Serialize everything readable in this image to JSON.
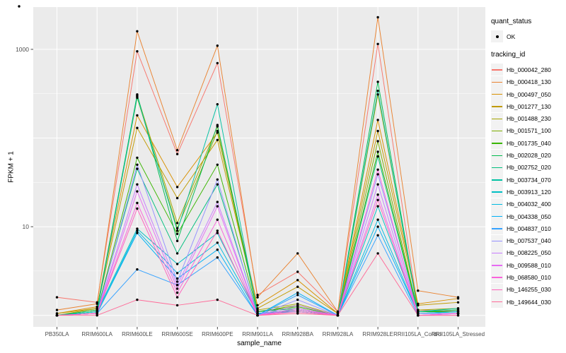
{
  "figure": {
    "background": "#FFFFFF",
    "panel_background": "#EBEBEB",
    "grid_color": "#FFFFFF",
    "tick_color": "#333333",
    "tick_label_color": "#4D4D4D"
  },
  "chart_data": {
    "type": "line",
    "title": "",
    "xlabel": "sample_name",
    "ylabel": "FPKM + 1",
    "y_scale": "log10",
    "ylim": [
      0.74,
      3200
    ],
    "grid": true,
    "legend_position": "right",
    "y_tick_labels": [
      {
        "value": 1000,
        "label": "1000"
      },
      {
        "value": 10,
        "label": "10"
      }
    ],
    "y_gridlines_major": [
      1,
      10,
      100,
      1000
    ],
    "y_gridlines_minor": [
      3.162,
      31.62,
      316.2
    ],
    "categories": [
      "PB350LA",
      "RRIM600LA",
      "RRIM600LE",
      "RRIM600SE",
      "RRIM600PE",
      "RRIM901LA",
      "RRIM928BA",
      "RRIM928LA",
      "RRIM928LE",
      "RRII105LA_Control",
      "RRII105LA_Stressed"
    ],
    "point_color": "#000000",
    "legend": {
      "quant_status": {
        "title": "quant_status",
        "items": [
          {
            "label": "OK",
            "marker": "point",
            "color": "#000000"
          }
        ]
      },
      "tracking_id": {
        "title": "tracking_id"
      }
    },
    "series": [
      {
        "name": "Hb_000042_280",
        "color": "#F8766D",
        "values": [
          1.6,
          1.4,
          950,
          66,
          700,
          1.7,
          3.1,
          1.1,
          1150,
          1.15,
          1.1
        ]
      },
      {
        "name": "Hb_000418_130",
        "color": "#EA8331",
        "values": [
          1.15,
          1.35,
          1600,
          73,
          1100,
          1.6,
          5.0,
          1.1,
          2300,
          1.9,
          1.6
        ]
      },
      {
        "name": "Hb_000497_050",
        "color": "#D89000",
        "values": [
          1.05,
          1.25,
          180,
          28,
          115,
          1.3,
          2.5,
          1.05,
          160,
          1.35,
          1.55
        ]
      },
      {
        "name": "Hb_001277_130",
        "color": "#C09B00",
        "values": [
          1.05,
          1.2,
          130,
          21,
          95,
          1.2,
          2.1,
          1.05,
          120,
          1.3,
          1.4
        ]
      },
      {
        "name": "Hb_001488_230",
        "color": "#A3A500",
        "values": [
          1.0,
          1.2,
          300,
          11,
          135,
          1.15,
          1.35,
          1.0,
          310,
          1.15,
          1.2
        ]
      },
      {
        "name": "Hb_001571_100",
        "color": "#7CAE00",
        "values": [
          1.0,
          1.15,
          285,
          9.6,
          120,
          1.1,
          1.3,
          1.0,
          92,
          1.1,
          1.15
        ]
      },
      {
        "name": "Hb_001735_040",
        "color": "#39B600",
        "values": [
          1.0,
          1.1,
          60,
          8.3,
          50,
          1.1,
          1.25,
          1.0,
          70,
          1.1,
          1.1
        ]
      },
      {
        "name": "Hb_002028_020",
        "color": "#00BB4E",
        "values": [
          1.0,
          1.15,
          310,
          6.9,
          140,
          1.1,
          1.2,
          1.0,
          430,
          1.1,
          1.15
        ]
      },
      {
        "name": "Hb_002752_020",
        "color": "#00BF7D",
        "values": [
          1.0,
          1.1,
          45,
          5.0,
          30,
          1.05,
          1.15,
          1.0,
          62,
          1.05,
          1.1
        ]
      },
      {
        "name": "Hb_003734_070",
        "color": "#00C1A3",
        "values": [
          1.0,
          1.1,
          295,
          9.0,
          240,
          1.05,
          1.15,
          1.0,
          340,
          1.1,
          1.2
        ]
      },
      {
        "name": "Hb_003913_120",
        "color": "#00BFC4",
        "values": [
          1.0,
          1.1,
          9.5,
          3.8,
          8.5,
          1.05,
          1.1,
          1.0,
          17,
          1.05,
          1.1
        ]
      },
      {
        "name": "Hb_004032_400",
        "color": "#00BAE0",
        "values": [
          1.0,
          1.05,
          9.0,
          3.0,
          6.6,
          1.05,
          1.1,
          1.0,
          12,
          1.05,
          1.1
        ]
      },
      {
        "name": "Hb_004338_050",
        "color": "#00B0F6",
        "values": [
          1.0,
          1.05,
          8.5,
          2.6,
          5.5,
          1.0,
          1.8,
          1.0,
          10,
          1.05,
          1.05
        ]
      },
      {
        "name": "Hb_004837_010",
        "color": "#35A2FF",
        "values": [
          1.0,
          1.05,
          3.3,
          2.2,
          4.5,
          1.0,
          1.7,
          1.0,
          8.0,
          1.0,
          1.05
        ]
      },
      {
        "name": "Hb_007537_040",
        "color": "#9590FF",
        "values": [
          1.0,
          1.05,
          50,
          2.4,
          34,
          1.0,
          1.5,
          1.0,
          39,
          1.05,
          1.05
        ]
      },
      {
        "name": "Hb_008225_050",
        "color": "#C77CFF",
        "values": [
          1.0,
          1.05,
          30,
          2.2,
          19,
          1.0,
          1.3,
          1.0,
          30,
          1.0,
          1.05
        ]
      },
      {
        "name": "Hb_009588_010",
        "color": "#E76BF3",
        "values": [
          1.0,
          1.05,
          25,
          2.0,
          17,
          1.0,
          1.2,
          1.0,
          23,
          1.0,
          1.05
        ]
      },
      {
        "name": "Hb_068580_010",
        "color": "#FA62DB",
        "values": [
          1.0,
          1.05,
          18.5,
          1.8,
          12,
          1.0,
          1.15,
          1.0,
          44,
          1.0,
          1.05
        ]
      },
      {
        "name": "Hb_146255_030",
        "color": "#FF62BC",
        "values": [
          1.0,
          1.05,
          16,
          1.6,
          9.0,
          1.0,
          1.1,
          1.0,
          20,
          1.0,
          1.0
        ]
      },
      {
        "name": "Hb_149644_030",
        "color": "#FF6A98",
        "values": [
          1.0,
          1.0,
          1.5,
          1.3,
          1.5,
          1.0,
          1.05,
          1.0,
          5.0,
          1.0,
          1.0
        ]
      }
    ]
  }
}
